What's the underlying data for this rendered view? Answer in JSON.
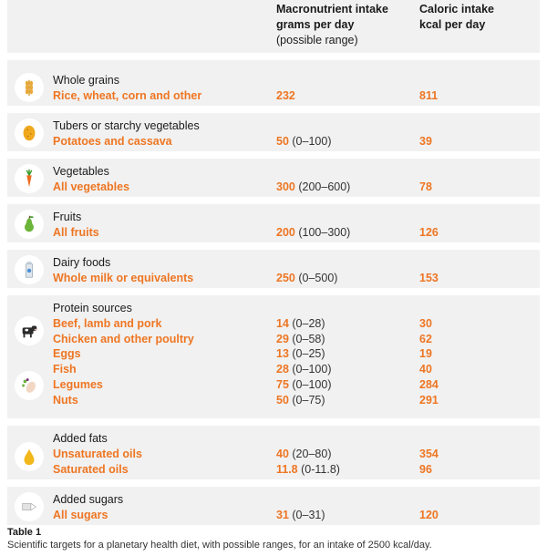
{
  "header": {
    "grams_title_line1": "Macronutrient intake",
    "grams_title_line2": "grams per day",
    "grams_title_sub": "(possible range)",
    "kcal_title_line1": "Caloric intake",
    "kcal_title_line2": "kcal per day"
  },
  "sections": [
    {
      "category": "Whole grains",
      "icon": "wheat-icon",
      "items": [
        {
          "name": "Rice, wheat, corn and other",
          "grams": "232",
          "range": "",
          "kcal": "811"
        }
      ]
    },
    {
      "category": "Tubers or starchy vegetables",
      "icon": "potato-icon",
      "items": [
        {
          "name": "Potatoes and cassava",
          "grams": "50",
          "range": "(0–100)",
          "kcal": "39"
        }
      ]
    },
    {
      "category": "Vegetables",
      "icon": "carrot-icon",
      "items": [
        {
          "name": "All vegetables",
          "grams": "300",
          "range": "(200–600)",
          "kcal": "78"
        }
      ]
    },
    {
      "category": "Fruits",
      "icon": "pear-icon",
      "items": [
        {
          "name": "All fruits",
          "grams": "200",
          "range": "(100–300)",
          "kcal": "126"
        }
      ]
    },
    {
      "category": "Dairy foods",
      "icon": "milk-icon",
      "items": [
        {
          "name": "Whole milk or equivalents",
          "grams": "250",
          "range": "(0–500)",
          "kcal": "153"
        }
      ]
    },
    {
      "category": "Protein sources",
      "icon": "cow-icon",
      "icon2": "legumes-icon",
      "items": [
        {
          "name": "Beef, lamb and pork",
          "grams": "14",
          "range": "(0–28)",
          "kcal": "30"
        },
        {
          "name": "Chicken and other poultry",
          "grams": "29",
          "range": "(0–58)",
          "kcal": "62"
        },
        {
          "name": "Eggs",
          "grams": "13",
          "range": "(0–25)",
          "kcal": "19"
        },
        {
          "name": "Fish",
          "grams": "28",
          "range": "(0–100)",
          "kcal": "40"
        },
        {
          "name": "Legumes",
          "grams": "75",
          "range": "(0–100)",
          "kcal": "284"
        },
        {
          "name": "Nuts",
          "grams": "50",
          "range": "(0–75)",
          "kcal": "291"
        }
      ]
    },
    {
      "category": "Added fats",
      "icon": "oil-drop-icon",
      "items": [
        {
          "name": "Unsaturated oils",
          "grams": "40",
          "range": "(20–80)",
          "kcal": "354"
        },
        {
          "name": "Saturated oils",
          "grams": "11.8",
          "range": "(0-11.8)",
          "kcal": "96"
        }
      ]
    },
    {
      "category": "Added sugars",
      "icon": "sugar-icon",
      "items": [
        {
          "name": "All sugars",
          "grams": "31",
          "range": "(0–31)",
          "kcal": "120"
        }
      ]
    }
  ],
  "caption": {
    "label": "Table 1",
    "text": "Scientific targets for a planetary health diet, with possible ranges, for an intake of 2500 kcal/day."
  },
  "colors": {
    "accent": "#ee7623",
    "band": "#f1f1f1",
    "text": "#1a1a1a"
  }
}
